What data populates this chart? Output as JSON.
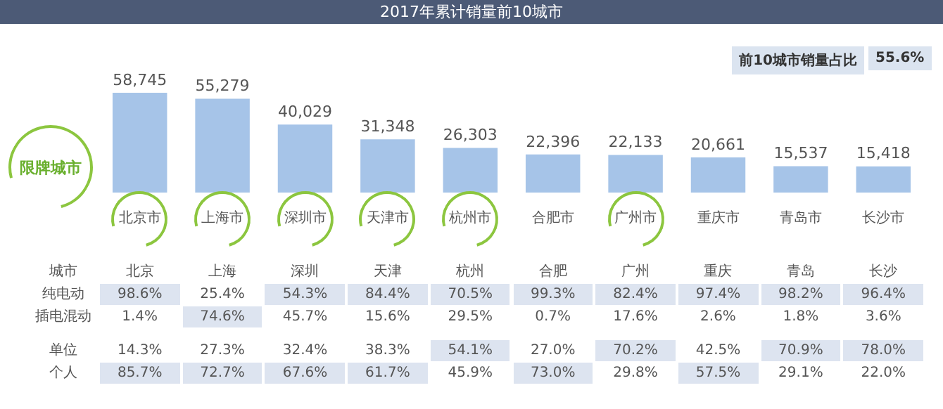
{
  "chart_data": [
    {
      "type": "bar",
      "title": "2017年累计销量前10城市",
      "categories": [
        "北京市",
        "上海市",
        "深圳市",
        "天津市",
        "杭州市",
        "合肥市",
        "广州市",
        "重庆市",
        "青岛市",
        "长沙市"
      ],
      "values": [
        58745,
        55279,
        40029,
        31348,
        26303,
        22396,
        22133,
        20661,
        15537,
        15418
      ],
      "color": "#a6c4e8",
      "value_labels": [
        "58,745",
        "55,279",
        "40,029",
        "31,348",
        "26,303",
        "22,396",
        "22,133",
        "20,661",
        "15,537",
        "15,418"
      ],
      "annotations": [
        "限牌城市",
        "前10城市销量占比",
        "55.6%"
      ]
    },
    {
      "type": "heatmap",
      "xlabel": "城市",
      "categories": [
        "北京",
        "上海",
        "深圳",
        "天津",
        "杭州",
        "合肥",
        "广州",
        "重庆",
        "青岛",
        "长沙"
      ],
      "y_categories": [
        "纯电动",
        "插电混动"
      ],
      "cells": [
        [
          98.6,
          25.4,
          54.3,
          84.4,
          70.5,
          99.3,
          82.4,
          97.4,
          98.2,
          96.4
        ],
        [
          1.4,
          74.6,
          45.7,
          15.6,
          29.5,
          0.7,
          17.6,
          2.6,
          1.8,
          3.6
        ]
      ],
      "cell_labels": [
        [
          "98.6%",
          "25.4%",
          "54.3%",
          "84.4%",
          "70.5%",
          "99.3%",
          "82.4%",
          "97.4%",
          "98.2%",
          "96.4%"
        ],
        [
          "1.4%",
          "74.6%",
          "45.7%",
          "15.6%",
          "29.5%",
          "0.7%",
          "17.6%",
          "2.6%",
          "1.8%",
          "3.6%"
        ]
      ],
      "tick_labels": "xy"
    },
    {
      "type": "heatmap",
      "categories": [
        null,
        null,
        null,
        null,
        null,
        null,
        null,
        null,
        null,
        null
      ],
      "y_categories": [
        "单位",
        "个人"
      ],
      "cells": [
        [
          14.3,
          27.3,
          32.4,
          38.3,
          54.1,
          27.0,
          70.2,
          42.5,
          70.9,
          78.0
        ],
        [
          85.7,
          72.7,
          67.6,
          61.7,
          45.9,
          73.0,
          29.8,
          57.5,
          29.1,
          22.0
        ]
      ],
      "cell_labels": [
        [
          "14.3%",
          "27.3%",
          "32.4%",
          "38.3%",
          "54.1%",
          "27.0%",
          "70.2%",
          "42.5%",
          "70.9%",
          "78.0%"
        ],
        [
          "85.7%",
          "72.7%",
          "67.6%",
          "61.7%",
          "45.9%",
          "73.0%",
          "29.8%",
          "57.5%",
          "29.1%",
          "22.0%"
        ]
      ],
      "tick_labels": "y"
    }
  ]
}
